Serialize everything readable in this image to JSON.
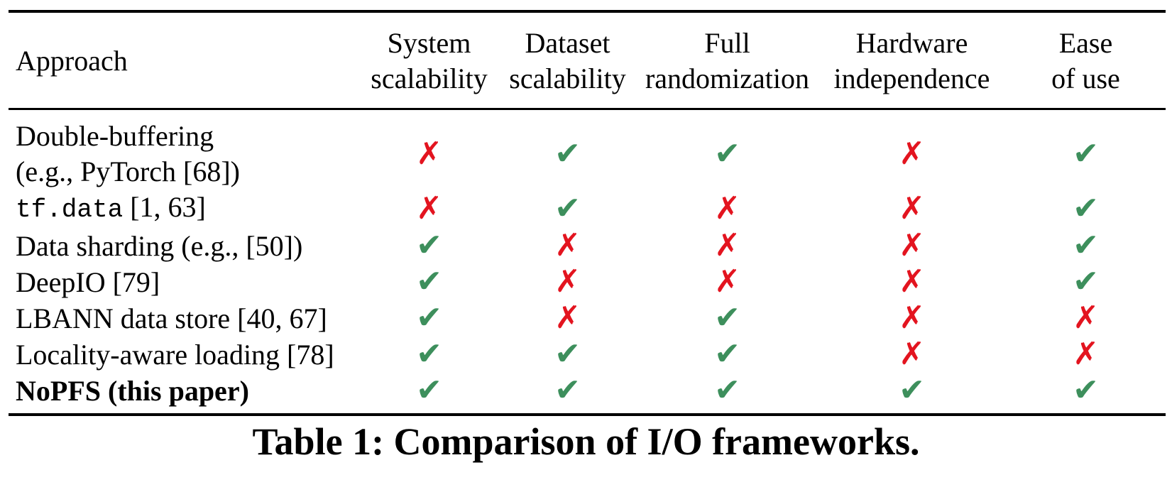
{
  "colors": {
    "check": "#3d8f5c",
    "cross": "#e3141f"
  },
  "icons": {
    "check": "check-mark-icon",
    "cross": "cross-mark-icon"
  },
  "table": {
    "header": {
      "approach": "Approach",
      "columns": [
        [
          "System",
          "scalability"
        ],
        [
          "Dataset",
          "scalability"
        ],
        [
          "Full",
          "randomization"
        ],
        [
          "Hardware",
          "independence"
        ],
        [
          "Ease",
          "of use"
        ]
      ]
    },
    "rows": [
      {
        "name_lines": [
          "Double-buffering",
          "(e.g., PyTorch [68])"
        ],
        "bold": false,
        "values": [
          false,
          true,
          true,
          false,
          true
        ]
      },
      {
        "name_code": "tf.data",
        "name_rest": " [1, 63]",
        "bold": false,
        "values": [
          false,
          true,
          false,
          false,
          true
        ]
      },
      {
        "name": "Data sharding (e.g., [50])",
        "bold": false,
        "values": [
          true,
          false,
          false,
          false,
          true
        ]
      },
      {
        "name": "DeepIO [79]",
        "bold": false,
        "values": [
          true,
          false,
          false,
          false,
          true
        ]
      },
      {
        "name": "LBANN data store [40, 67]",
        "bold": false,
        "values": [
          true,
          false,
          true,
          false,
          false
        ]
      },
      {
        "name": "Locality-aware loading [78]",
        "bold": false,
        "values": [
          true,
          true,
          true,
          false,
          false
        ]
      },
      {
        "name": "NoPFS (this paper)",
        "bold": true,
        "values": [
          true,
          true,
          true,
          true,
          true
        ]
      }
    ]
  },
  "caption": "Table 1: Comparison of I/O frameworks."
}
